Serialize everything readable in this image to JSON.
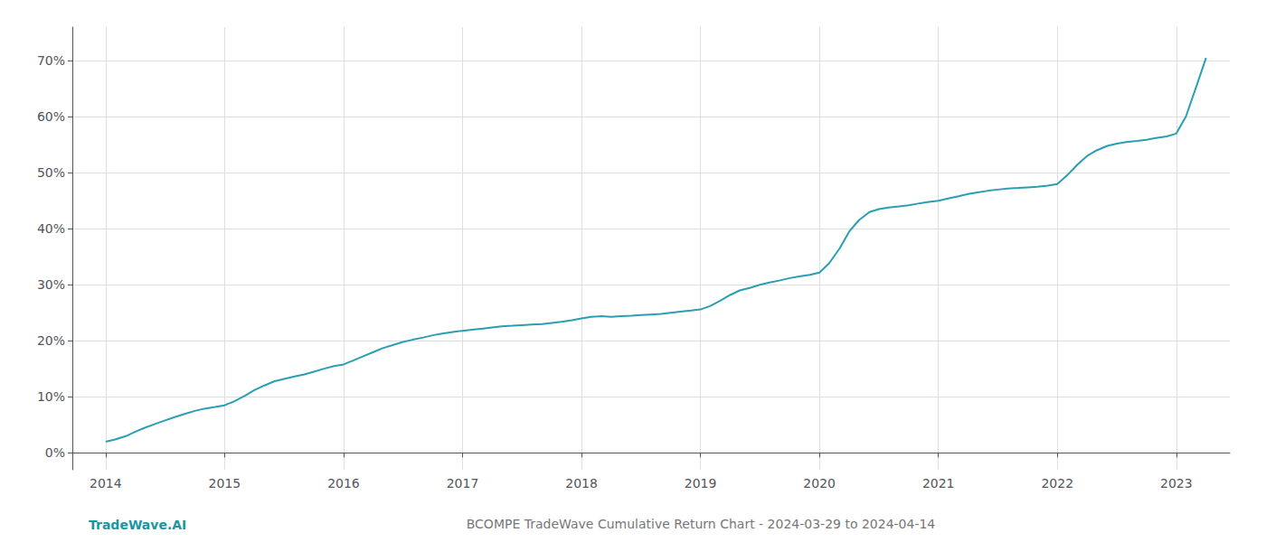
{
  "chart_data": {
    "type": "line",
    "title": "BCOMPE TradeWave Cumulative Return Chart - 2024-03-29 to 2024-04-14",
    "annotations": [
      {
        "text": "TradeWave.AI",
        "color": "#1a96a0"
      }
    ],
    "x": [
      2014.0,
      2014.08,
      2014.17,
      2014.25,
      2014.33,
      2014.42,
      2014.5,
      2014.58,
      2014.67,
      2014.75,
      2014.83,
      2014.92,
      2015.0,
      2015.08,
      2015.17,
      2015.25,
      2015.33,
      2015.42,
      2015.5,
      2015.58,
      2015.67,
      2015.75,
      2015.83,
      2015.92,
      2016.0,
      2016.08,
      2016.17,
      2016.25,
      2016.33,
      2016.42,
      2016.5,
      2016.58,
      2016.67,
      2016.75,
      2016.83,
      2016.92,
      2017.0,
      2017.08,
      2017.17,
      2017.25,
      2017.33,
      2017.42,
      2017.5,
      2017.58,
      2017.67,
      2017.75,
      2017.83,
      2017.92,
      2018.0,
      2018.08,
      2018.17,
      2018.25,
      2018.33,
      2018.42,
      2018.5,
      2018.58,
      2018.67,
      2018.75,
      2018.83,
      2018.92,
      2019.0,
      2019.08,
      2019.17,
      2019.25,
      2019.33,
      2019.42,
      2019.5,
      2019.58,
      2019.67,
      2019.75,
      2019.83,
      2019.92,
      2020.0,
      2020.08,
      2020.17,
      2020.25,
      2020.33,
      2020.42,
      2020.5,
      2020.58,
      2020.67,
      2020.75,
      2020.83,
      2020.92,
      2021.0,
      2021.08,
      2021.17,
      2021.25,
      2021.33,
      2021.42,
      2021.5,
      2021.58,
      2021.67,
      2021.75,
      2021.83,
      2021.92,
      2022.0,
      2022.08,
      2022.17,
      2022.25,
      2022.33,
      2022.42,
      2022.5,
      2022.58,
      2022.67,
      2022.75,
      2022.83,
      2022.92,
      2023.0,
      2023.08,
      2023.17,
      2023.25
    ],
    "values": [
      2.0,
      2.4,
      3.0,
      3.8,
      4.5,
      5.2,
      5.8,
      6.4,
      7.0,
      7.5,
      7.9,
      8.2,
      8.5,
      9.2,
      10.2,
      11.2,
      12.0,
      12.8,
      13.2,
      13.6,
      14.0,
      14.5,
      15.0,
      15.5,
      15.8,
      16.5,
      17.3,
      18.0,
      18.7,
      19.3,
      19.8,
      20.2,
      20.6,
      21.0,
      21.3,
      21.6,
      21.8,
      22.0,
      22.2,
      22.4,
      22.6,
      22.7,
      22.8,
      22.9,
      23.0,
      23.2,
      23.4,
      23.7,
      24.0,
      24.3,
      24.4,
      24.3,
      24.4,
      24.5,
      24.6,
      24.7,
      24.8,
      25.0,
      25.2,
      25.4,
      25.6,
      26.2,
      27.2,
      28.2,
      29.0,
      29.5,
      30.0,
      30.4,
      30.8,
      31.2,
      31.5,
      31.8,
      32.2,
      33.8,
      36.5,
      39.5,
      41.5,
      43.0,
      43.5,
      43.8,
      44.0,
      44.2,
      44.5,
      44.8,
      45.0,
      45.4,
      45.8,
      46.2,
      46.5,
      46.8,
      47.0,
      47.2,
      47.3,
      47.4,
      47.5,
      47.7,
      48.0,
      49.5,
      51.5,
      53.0,
      54.0,
      54.8,
      55.2,
      55.5,
      55.7,
      55.9,
      56.2,
      56.5,
      57.0,
      60.0,
      65.5,
      70.5
    ],
    "color": "#2b9eb3",
    "xlim": [
      2013.72,
      2023.45
    ],
    "xticks": [
      2014,
      2015,
      2016,
      2017,
      2018,
      2019,
      2020,
      2021,
      2022,
      2023
    ],
    "ylim": [
      -3,
      76
    ],
    "yticks": [
      {
        "value": 0,
        "label": "0%"
      },
      {
        "value": 10,
        "label": "10%"
      },
      {
        "value": 20,
        "label": "20%"
      },
      {
        "value": 30,
        "label": "30%"
      },
      {
        "value": 40,
        "label": "40%"
      },
      {
        "value": 50,
        "label": "50%"
      },
      {
        "value": 60,
        "label": "60%"
      },
      {
        "value": 70,
        "label": "70%"
      }
    ],
    "grid": true
  }
}
